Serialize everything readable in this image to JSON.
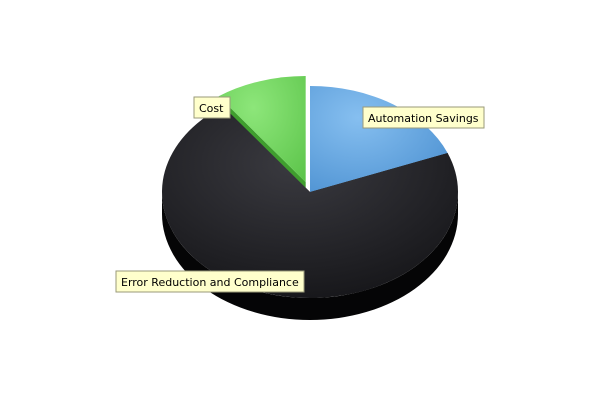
{
  "chart_data": {
    "type": "pie",
    "title": "",
    "slices": [
      {
        "label": "Automation Savings",
        "value": 19,
        "color": "#5aa0e0",
        "side_color": "#2f6fae",
        "exploded": false
      },
      {
        "label": "Error Reduction and Compliance",
        "value": 71,
        "color": "#1c1c20",
        "side_color": "#050506",
        "exploded": false
      },
      {
        "label": "Cost",
        "value": 10,
        "color": "#72d660",
        "side_color": "#3f9e2e",
        "exploded": true
      }
    ],
    "legend": "none",
    "style": "3d"
  }
}
